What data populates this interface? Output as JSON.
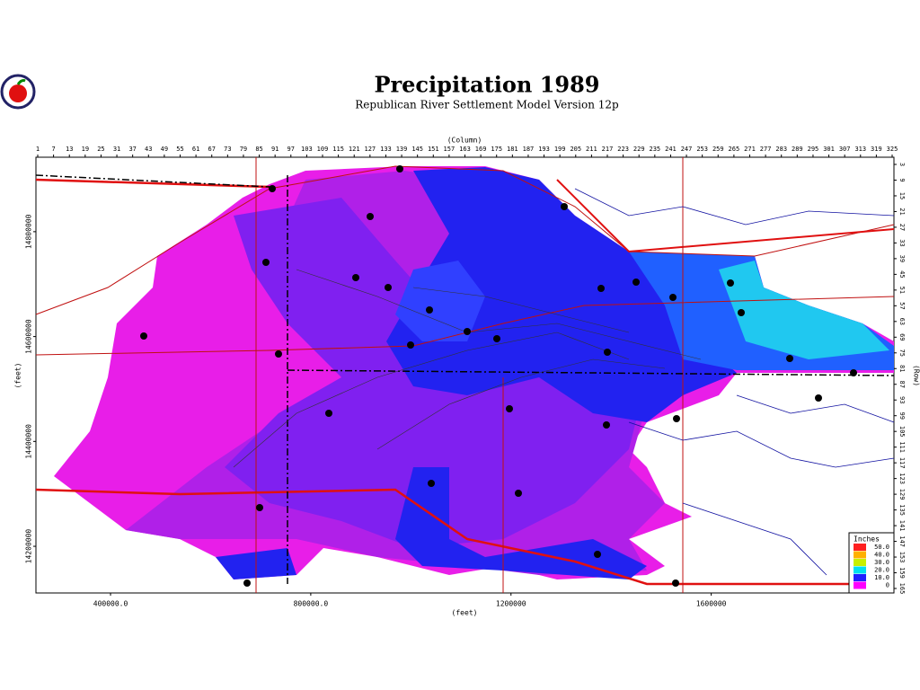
{
  "header": {
    "title": "Precipitation 1989",
    "subtitle": "Republican River Settlement Model Version 12p"
  },
  "map": {
    "column_label": "(Column)",
    "row_label": "(Row)",
    "x_label": "(feet)",
    "y_label": "(feet)",
    "column_ticks": [
      1,
      7,
      13,
      19,
      25,
      31,
      37,
      43,
      49,
      55,
      61,
      67,
      73,
      79,
      85,
      91,
      97,
      103,
      109,
      115,
      121,
      127,
      133,
      139,
      145,
      151,
      157,
      163,
      169,
      175,
      181,
      187,
      193,
      199,
      205,
      211,
      217,
      223,
      229,
      235,
      241,
      247,
      253,
      259,
      265,
      271,
      277,
      283,
      289,
      295,
      301,
      307,
      313,
      319,
      325
    ],
    "row_ticks": [
      3,
      9,
      15,
      21,
      27,
      33,
      39,
      45,
      51,
      57,
      63,
      69,
      75,
      81,
      87,
      93,
      99,
      105,
      111,
      117,
      123,
      129,
      135,
      141,
      147,
      153,
      159,
      165
    ],
    "xlim": [
      251000,
      1965000
    ],
    "ylim": [
      14111000,
      14942000
    ],
    "xticks": [
      {
        "value": 400000,
        "label": "400000.0"
      },
      {
        "value": 800000,
        "label": "800000.0"
      },
      1200000,
      1600000
    ],
    "yticks": [
      14800000,
      14600000,
      14400000,
      14200000
    ],
    "legend": {
      "title": "Inches",
      "items": [
        {
          "value": 50,
          "label": "50.0",
          "color": "#ff2020"
        },
        {
          "value": 40,
          "label": "40.0",
          "color": "#ffb000"
        },
        {
          "value": 30,
          "label": "30.0",
          "color": "#c8f000"
        },
        {
          "value": 20,
          "label": "20.0",
          "color": "#00e0f0"
        },
        {
          "value": 10,
          "label": "10.0",
          "color": "#2020ff"
        },
        {
          "value": 0,
          "label": "0",
          "color": "#ff00ff"
        }
      ]
    }
  }
}
